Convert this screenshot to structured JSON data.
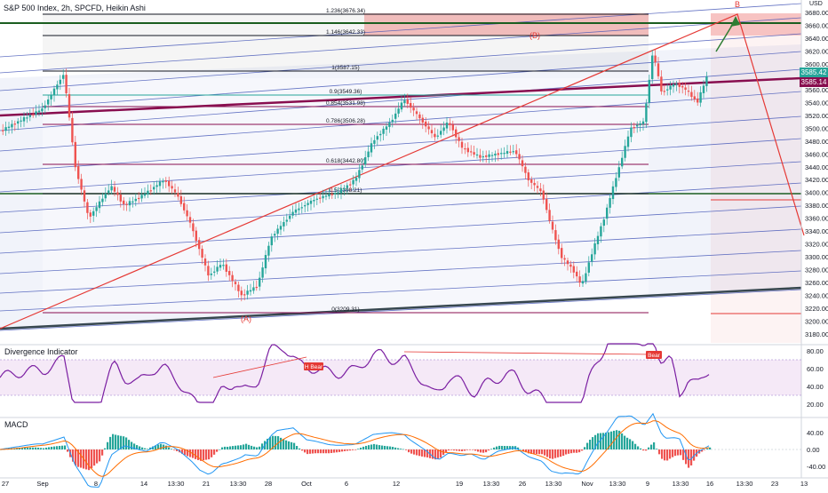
{
  "header": {
    "symbol_title": "S&P 500 Index, 2h, SPCFD, Heikin Ashi",
    "currency": "USD"
  },
  "price_axis": {
    "ticks": [
      "3680.00",
      "3660.00",
      "3640.00",
      "3620.00",
      "3600.00",
      "3580.00",
      "3560.00",
      "3540.00",
      "3520.00",
      "3500.00",
      "3480.00",
      "3460.00",
      "3440.00",
      "3420.00",
      "3400.00",
      "3380.00",
      "3360.00",
      "3340.00",
      "3320.00",
      "3300.00",
      "3280.00",
      "3260.00",
      "3240.00",
      "3220.00",
      "3200.00",
      "3180.00"
    ],
    "last_price": "3585.42",
    "prev_price": "3585.14"
  },
  "fib_levels": [
    {
      "label": "1.236(3676.34)"
    },
    {
      "label": "1.146(3642.33)"
    },
    {
      "label": "1(3587.15)"
    },
    {
      "label": "0.9(3549.36)"
    },
    {
      "label": "0.854(3531.98)"
    },
    {
      "label": "0.786(3506.28)"
    },
    {
      "label": "0.618(3442.80)"
    },
    {
      "label": "0.5(3398.21)"
    },
    {
      "label": "0(3209.31)"
    }
  ],
  "wave_labels": {
    "a": "(A)",
    "b_paren": "(B)",
    "b": "B"
  },
  "divergence": {
    "title": "Divergence Indicator",
    "ticks": [
      "80.00",
      "60.00",
      "40.00",
      "20.00"
    ],
    "tag_h_bear": "H Bear",
    "tag_bear": "Bear"
  },
  "macd": {
    "title": "MACD",
    "ticks": [
      "40.00",
      "0.00",
      "-40.00"
    ]
  },
  "time_axis": {
    "labels": [
      "27",
      "Sep",
      "8",
      "14",
      "13:30",
      "21",
      "13:30",
      "28",
      "Oct",
      "6",
      "12",
      "19",
      "13:30",
      "26",
      "13:30",
      "Nov",
      "13:30",
      "9",
      "13:30",
      "16",
      "13:30",
      "23",
      "13"
    ]
  },
  "colors": {
    "up": "#26a69a",
    "down": "#ef5350",
    "channel": "#3f51b5",
    "support": "#1b5e20",
    "resistance": "#880e4f",
    "projection": "#e53935",
    "green_arrow": "#2e7d32"
  }
}
